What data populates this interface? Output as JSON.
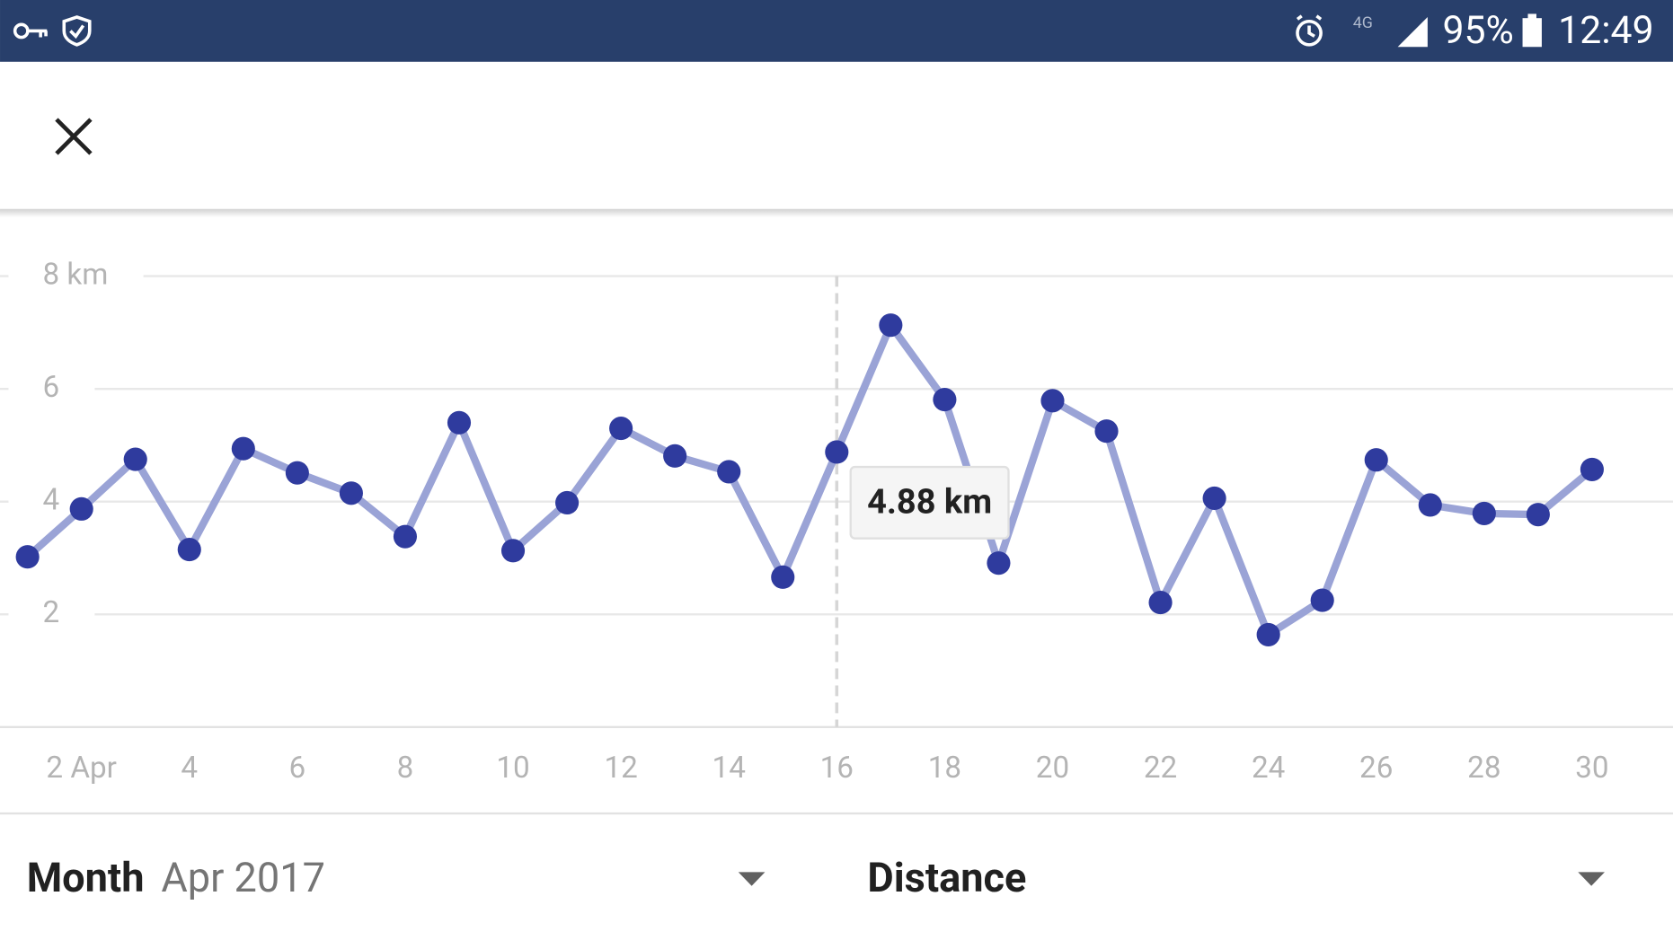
{
  "status_bar": {
    "network": "4G",
    "battery": "95%",
    "time": "12:49"
  },
  "chart_data": {
    "type": "line",
    "x": [
      1,
      2,
      3,
      4,
      5,
      6,
      7,
      8,
      9,
      10,
      11,
      12,
      13,
      14,
      15,
      16,
      17,
      18,
      19,
      20,
      21,
      22,
      23,
      24,
      25,
      26,
      27,
      28,
      29,
      30
    ],
    "values": [
      3.02,
      3.87,
      4.75,
      3.15,
      4.94,
      4.51,
      4.15,
      3.38,
      5.4,
      3.13,
      3.98,
      5.3,
      4.81,
      4.53,
      2.66,
      4.88,
      7.13,
      5.81,
      2.91,
      5.79,
      5.25,
      2.21,
      4.06,
      1.64,
      2.25,
      4.74,
      3.94,
      3.79,
      3.77,
      4.57
    ],
    "color": "#9aa3d6",
    "marker_color": "#2f3b9e",
    "xlim": [
      0.49,
      31.5
    ],
    "xticks": [
      {
        "value": 2,
        "label": "2 Apr"
      },
      4,
      6,
      8,
      10,
      12,
      14,
      16,
      18,
      20,
      22,
      24,
      26,
      28,
      30
    ],
    "ylim": [
      0,
      8
    ],
    "yticks": [
      {
        "value": 8,
        "label": "8 km"
      },
      6,
      4,
      2
    ],
    "grid": true,
    "tooltip": {
      "x": 16,
      "value": 4.88,
      "label": "4.88 km"
    }
  },
  "controls": {
    "period_label": "Month",
    "period_value": "Apr 2017",
    "metric": "Distance"
  }
}
